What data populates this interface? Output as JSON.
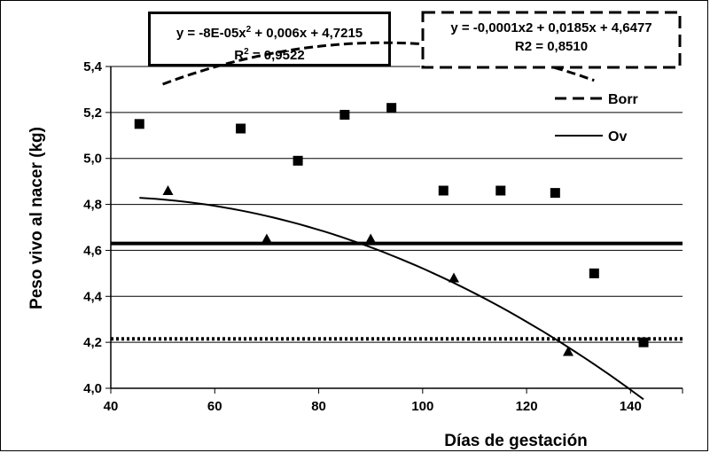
{
  "chart_data": {
    "type": "scatter",
    "xlabel": "Días de gestación",
    "ylabel": "Peso vivo al nacer (kg)",
    "xlim": [
      40,
      150
    ],
    "ylim": [
      4.0,
      5.4
    ],
    "x_ticks": [
      "40",
      "60",
      "80",
      "100",
      "120",
      "140"
    ],
    "y_ticks": [
      "4,0",
      "4,2",
      "4,4",
      "4,6",
      "4,8",
      "5,0",
      "5,2",
      "5,4"
    ],
    "grid": "horizontal",
    "legend_position": "top-right",
    "series": [
      {
        "name": "Borr",
        "marker": "triangle",
        "points": [
          [
            51,
            4.86
          ],
          [
            70,
            4.65
          ],
          [
            90,
            4.65
          ],
          [
            106,
            4.48
          ],
          [
            128,
            4.16
          ]
        ],
        "trendline": {
          "equation": "y = -0,0001x2 + 0,0185x + 4,6477",
          "r2": "R2 = 0,8510",
          "a": -0.0001,
          "b": 0.0185,
          "c": 4.6477,
          "x_range": [
            50,
            133
          ],
          "style": "dashed"
        }
      },
      {
        "name": "Ov",
        "marker": "square",
        "points": [
          [
            45.5,
            5.15
          ],
          [
            65,
            5.13
          ],
          [
            76,
            4.99
          ],
          [
            85,
            5.19
          ],
          [
            94,
            5.22
          ],
          [
            104,
            4.86
          ],
          [
            115,
            4.86
          ],
          [
            125.5,
            4.85
          ],
          [
            133,
            4.5
          ],
          [
            142.5,
            4.2
          ]
        ],
        "trendline": {
          "equation_prefix": "y = -8E-05x",
          "equation_sup": "2",
          "equation_suffix": " + 0,006x + 4,7215",
          "r2_prefix": "R",
          "r2_sup": "2",
          "r2_suffix": " = 0,9522",
          "a": -8e-05,
          "b": 0.006,
          "c": 4.7215,
          "x_range": [
            45.5,
            142.5
          ],
          "style": "solid"
        }
      }
    ],
    "reference_lines": [
      {
        "y": 4.63,
        "style": "solid-thick"
      },
      {
        "y": 4.215,
        "style": "dotted-thick"
      }
    ],
    "colors": {
      "ink": "#000000",
      "background": "#ffffff",
      "grid": "#000000"
    }
  }
}
